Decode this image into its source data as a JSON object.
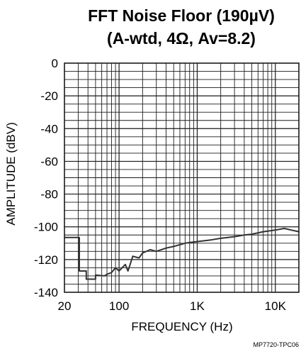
{
  "chart_data": {
    "type": "line",
    "title_lines": [
      "FFT Noise Floor (190µV)",
      "(A-wtd, 4Ω, Av=8.2)"
    ],
    "xlabel": "FREQUENCY (Hz)",
    "ylabel": "AMPLITUDE (dBV)",
    "x_scale": "log",
    "xlim": [
      20,
      20000
    ],
    "ylim": [
      -140,
      0
    ],
    "x_major_ticks": [
      20,
      100,
      1000,
      10000
    ],
    "x_tick_labels": [
      "20",
      "100",
      "1K",
      "10K"
    ],
    "y_ticks": [
      0,
      -20,
      -40,
      -60,
      -80,
      -100,
      -120,
      -140
    ],
    "y_tick_labels": [
      "0",
      "-20",
      "-40",
      "-60",
      "-80",
      "-100",
      "-120",
      "-140"
    ],
    "grid": true,
    "series": [
      {
        "x": [
          20,
          31,
          31,
          38,
          38,
          50,
          50,
          65,
          70,
          80,
          90,
          100,
          120,
          130,
          150,
          180,
          200,
          250,
          300,
          400,
          500,
          700,
          1000,
          1500,
          2000,
          3000,
          4000,
          5000,
          7000,
          10000,
          13000,
          16000,
          20000
        ],
        "y": [
          -106.5,
          -106.5,
          -127,
          -127,
          -132,
          -132,
          -129.5,
          -130,
          -129,
          -128,
          -125,
          -127,
          -123,
          -127,
          -118,
          -119,
          -116,
          -114,
          -115,
          -113,
          -112,
          -110,
          -109,
          -108,
          -107,
          -106,
          -105,
          -104.5,
          -103,
          -102,
          -101,
          -102,
          -103
        ]
      }
    ],
    "colors": {
      "curve": "#333333",
      "grid": "#1a1a1a"
    }
  },
  "footnote": "MP7720-TPC06"
}
